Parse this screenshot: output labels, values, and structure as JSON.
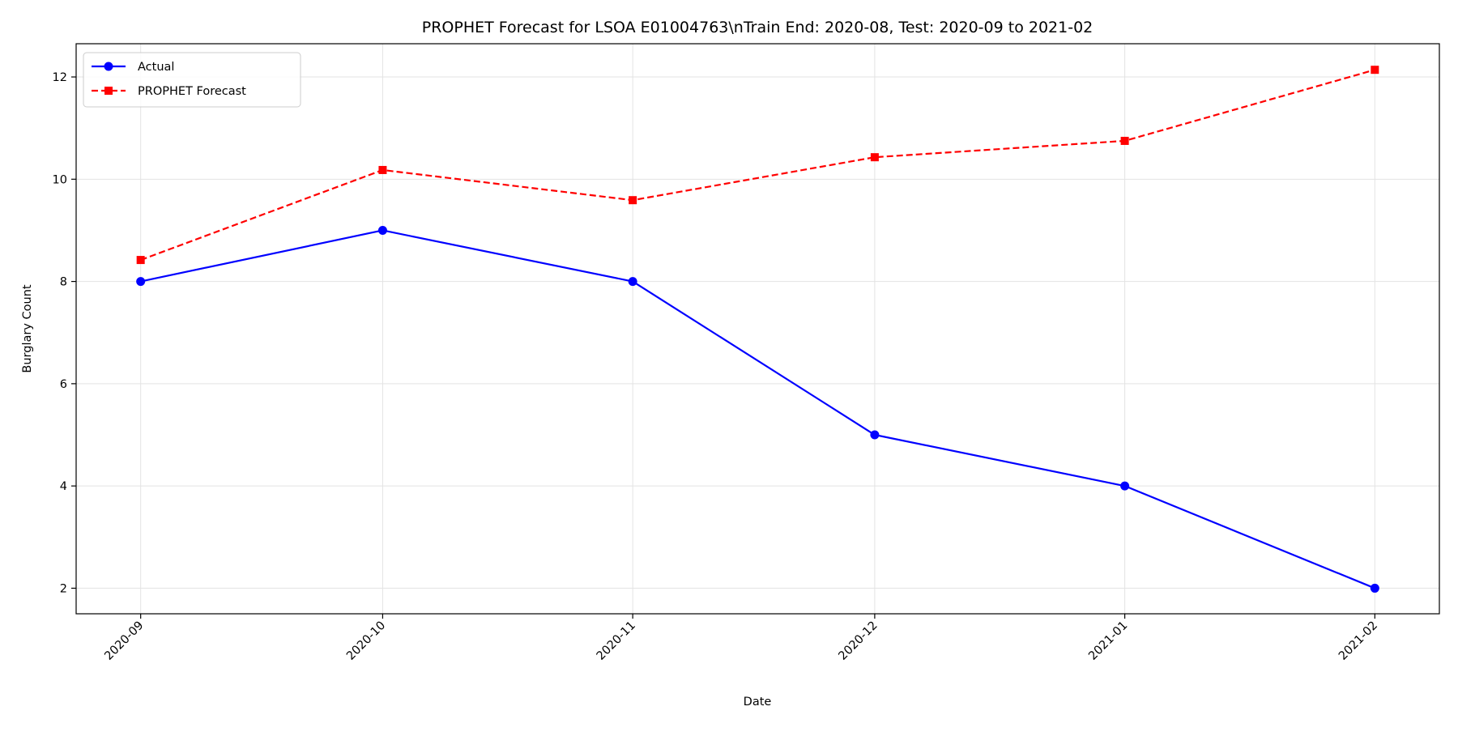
{
  "chart_data": {
    "type": "line",
    "title": "PROPHET Forecast for LSOA E01004763\\nTrain End: 2020-08, Test: 2020-09 to 2021-02",
    "xlabel": "Date",
    "ylabel": "Burglary Count",
    "x": [
      "2020-09-01",
      "2020-10-01",
      "2020-11-01",
      "2020-12-01",
      "2021-01-01",
      "2021-02-01"
    ],
    "x_tick_labels": [
      "2020-09",
      "2020-10",
      "2020-11",
      "2020-12",
      "2021-01",
      "2021-02"
    ],
    "y_ticks": [
      2,
      4,
      6,
      8,
      10,
      12
    ],
    "ylim": [
      1.5,
      12.65
    ],
    "xlim": [
      "2020-08-24",
      "2021-02-09"
    ],
    "grid": true,
    "legend_position": "top-left",
    "series": [
      {
        "name": "Actual",
        "values": [
          8,
          9,
          8,
          5,
          4,
          2
        ],
        "color": "#0000ff",
        "line_style": "solid",
        "marker": "circle"
      },
      {
        "name": "PROPHET Forecast",
        "values": [
          8.42,
          10.18,
          9.59,
          10.43,
          10.75,
          12.14
        ],
        "color": "#ff0000",
        "line_style": "dashed",
        "marker": "square"
      }
    ]
  }
}
